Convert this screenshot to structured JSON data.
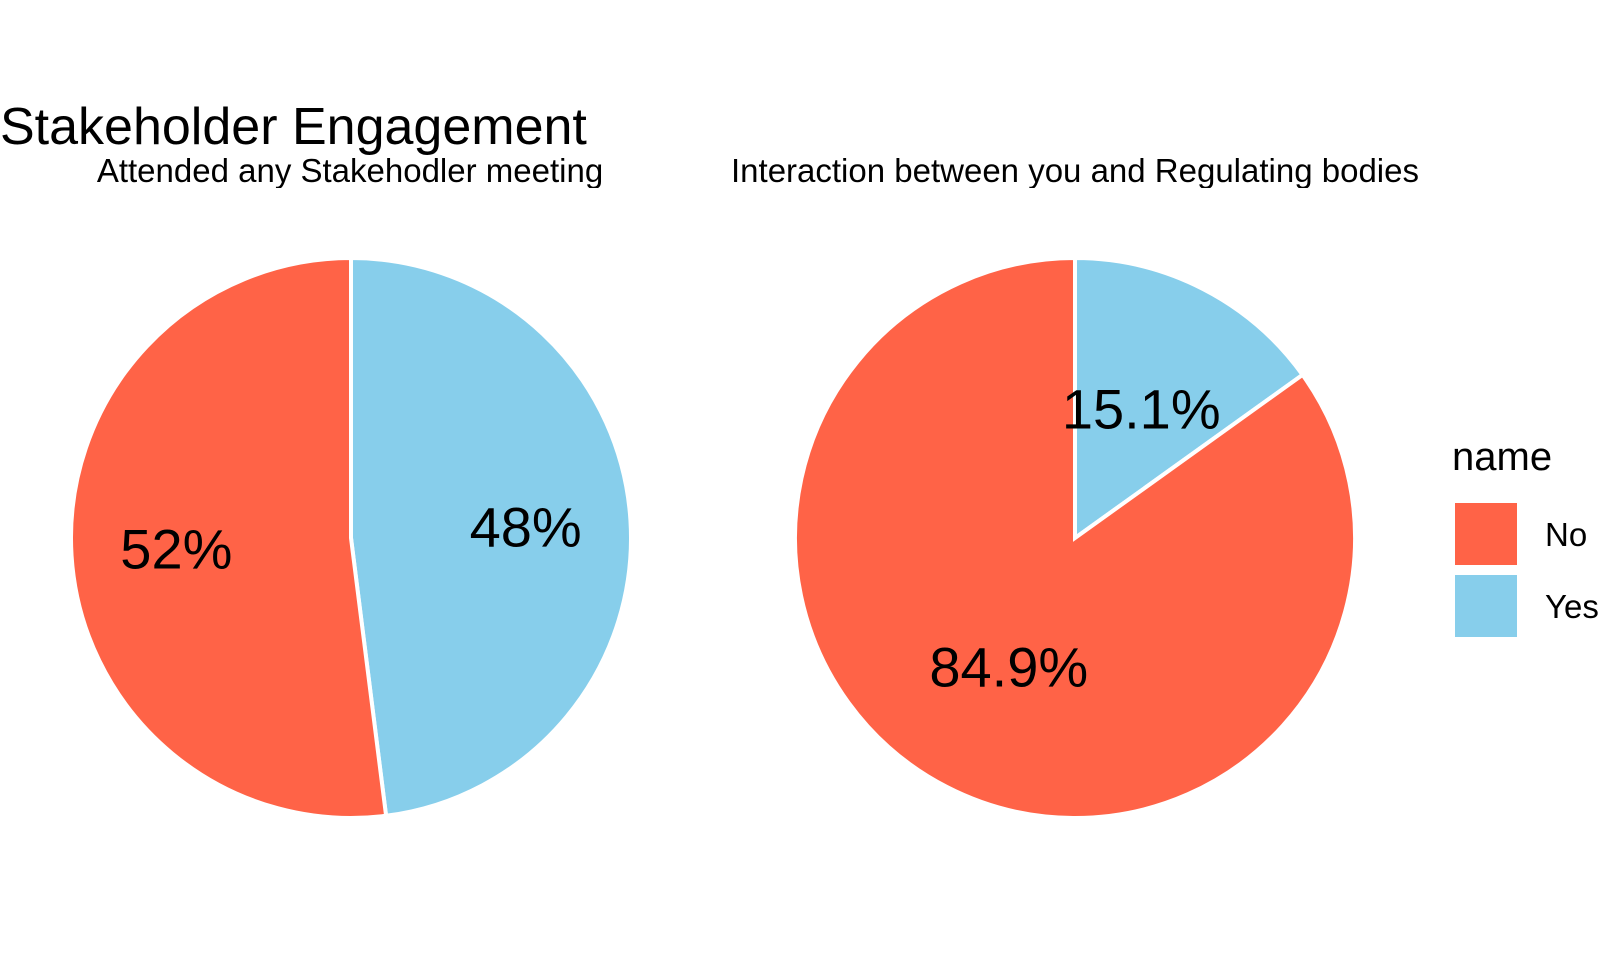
{
  "title": "Stakeholder Engagement",
  "colors": {
    "No": "#FF6347",
    "Yes": "#87CEEB",
    "background": "#FFFFFF",
    "slice_border": "#FFFFFF"
  },
  "legend": {
    "title": "name",
    "placement": "right",
    "entries": [
      "No",
      "Yes"
    ]
  },
  "chart_data": [
    {
      "type": "pie",
      "subtitle": "Attended any Stakehodler meeting",
      "categories": [
        "No",
        "Yes"
      ],
      "values": [
        52,
        48
      ],
      "labels": [
        "52%",
        "48%"
      ]
    },
    {
      "type": "pie",
      "subtitle": "Interaction between you and Regulating bodies",
      "categories": [
        "No",
        "Yes"
      ],
      "values": [
        84.9,
        15.1
      ],
      "labels": [
        "84.9%",
        "15.1%"
      ]
    }
  ]
}
